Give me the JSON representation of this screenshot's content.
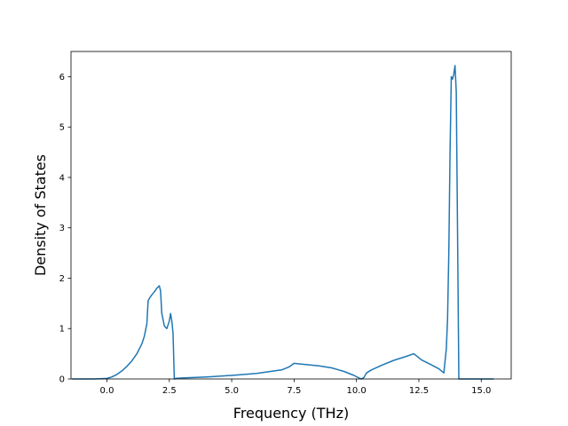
{
  "chart_data": {
    "type": "line",
    "title": "",
    "xlabel": "Frequency (THz)",
    "ylabel": "Density of States",
    "xlim": [
      -1.44,
      16.2
    ],
    "ylim": [
      0,
      6.5
    ],
    "xticks": [
      0.0,
      2.5,
      5.0,
      7.5,
      10.0,
      12.5,
      15.0
    ],
    "xtick_labels": [
      "0.0",
      "2.5",
      "5.0",
      "7.5",
      "10.0",
      "12.5",
      "15.0"
    ],
    "yticks": [
      0,
      1,
      2,
      3,
      4,
      5,
      6
    ],
    "ytick_labels": [
      "0",
      "1",
      "2",
      "3",
      "4",
      "5",
      "6"
    ],
    "grid": false,
    "legend": "none",
    "color": "#1f77b4",
    "series": [
      {
        "x": [
          -1.4,
          -1.0,
          -0.5,
          0.0,
          0.2,
          0.4,
          0.6,
          0.8,
          1.0,
          1.2,
          1.4,
          1.5,
          1.6,
          1.65,
          1.7,
          1.8,
          1.9,
          2.0,
          2.1,
          2.15,
          2.2,
          2.3,
          2.4,
          2.5,
          2.55,
          2.6,
          2.65,
          2.7,
          2.75,
          3.0,
          4.0,
          5.0,
          6.0,
          7.0,
          7.3,
          7.5,
          7.7,
          8.5,
          9.0,
          9.5,
          9.9,
          10.1,
          10.2,
          10.3,
          10.4,
          10.6,
          11.0,
          11.5,
          12.0,
          12.3,
          12.6,
          13.0,
          13.3,
          13.5,
          13.6,
          13.65,
          13.7,
          13.75,
          13.8,
          13.85,
          13.9,
          13.95,
          14.0,
          14.05,
          14.1,
          14.2,
          15.5
        ],
        "y": [
          0,
          0,
          0,
          0.01,
          0.04,
          0.09,
          0.16,
          0.25,
          0.36,
          0.5,
          0.7,
          0.85,
          1.1,
          1.55,
          1.6,
          1.67,
          1.73,
          1.8,
          1.85,
          1.75,
          1.3,
          1.05,
          1.0,
          1.15,
          1.3,
          1.15,
          0.9,
          0.0,
          0.01,
          0.02,
          0.04,
          0.07,
          0.11,
          0.18,
          0.24,
          0.31,
          0.3,
          0.26,
          0.22,
          0.15,
          0.07,
          0.02,
          0.0,
          0.03,
          0.12,
          0.18,
          0.27,
          0.37,
          0.45,
          0.5,
          0.38,
          0.28,
          0.2,
          0.12,
          0.6,
          1.2,
          2.5,
          4.5,
          6.0,
          5.95,
          6.05,
          6.22,
          5.7,
          3.0,
          0.0,
          0.0,
          0.0
        ]
      }
    ]
  }
}
